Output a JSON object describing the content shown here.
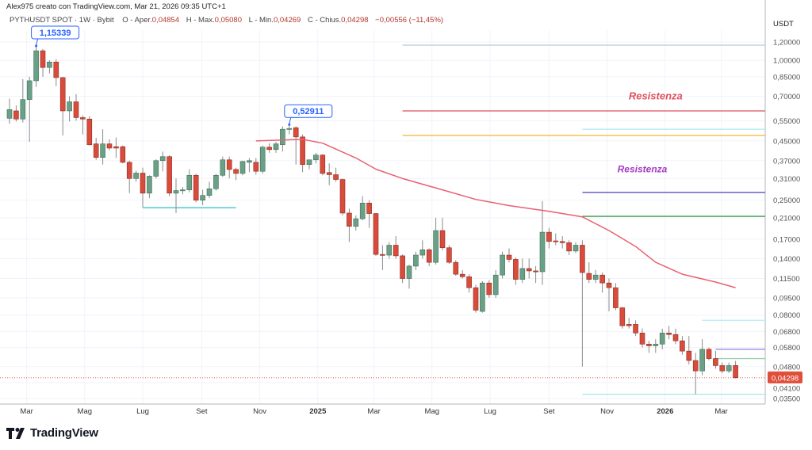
{
  "header": {
    "watermark": "Alex975 creato con TradingView.com, Mar 21, 2026 09:35 UTC+1",
    "symbol": "PYTHUSDT SPOT · 1W · Bybit",
    "ohlc": [
      {
        "label": "O - Aper.",
        "value": "0,04854"
      },
      {
        "label": "H - Max.",
        "value": "0,05080"
      },
      {
        "label": "L - Min.",
        "value": "0,04269"
      },
      {
        "label": "C - Chius.",
        "value": "0,04298"
      },
      {
        "label": "",
        "value": "−0,00556 (−11,45%)"
      }
    ]
  },
  "footer": {
    "logo_text": "TradingView"
  },
  "colors": {
    "up": "#6aa186",
    "down": "#d94c3c",
    "ma": "#e8616f",
    "callout": "#2962ff",
    "last_price": "#e04e3c"
  },
  "chart_data": {
    "type": "candlestick",
    "interval": "1W",
    "y_unit": "USDT",
    "y_scale": "log",
    "ylim": [
      0.033,
      1.3
    ],
    "grid": true,
    "y_ticks": [
      {
        "v": 1.2,
        "label": "1,20000"
      },
      {
        "v": 1.0,
        "label": "1,00000"
      },
      {
        "v": 0.85,
        "label": "0,85000"
      },
      {
        "v": 0.7,
        "label": "0,70000"
      },
      {
        "v": 0.55,
        "label": "0,55000"
      },
      {
        "v": 0.45,
        "label": "0,45000"
      },
      {
        "v": 0.37,
        "label": "0,37000"
      },
      {
        "v": 0.31,
        "label": "0,31000"
      },
      {
        "v": 0.25,
        "label": "0,25000"
      },
      {
        "v": 0.21,
        "label": "0,21000"
      },
      {
        "v": 0.17,
        "label": "0,17000"
      },
      {
        "v": 0.14,
        "label": "0,14000"
      },
      {
        "v": 0.115,
        "label": "0,11500"
      },
      {
        "v": 0.095,
        "label": "0,09500"
      },
      {
        "v": 0.08,
        "label": "0,08000"
      },
      {
        "v": 0.068,
        "label": "0,06800"
      },
      {
        "v": 0.058,
        "label": "0,05800"
      },
      {
        "v": 0.048,
        "label": "0,04800"
      },
      {
        "v": 0.041,
        "label": "0,04100"
      },
      {
        "v": 0.035,
        "label": "0,03500"
      }
    ],
    "x_ticks": [
      {
        "date": "2024-03-01",
        "label": "Mar"
      },
      {
        "date": "2024-05-01",
        "label": "Mag"
      },
      {
        "date": "2024-07-01",
        "label": "Lug"
      },
      {
        "date": "2024-09-01",
        "label": "Set"
      },
      {
        "date": "2024-11-01",
        "label": "Nov"
      },
      {
        "date": "2025-01-01",
        "label": "2025",
        "bold": true
      },
      {
        "date": "2025-03-01",
        "label": "Mar"
      },
      {
        "date": "2025-05-01",
        "label": "Mag"
      },
      {
        "date": "2025-07-01",
        "label": "Lug"
      },
      {
        "date": "2025-09-01",
        "label": "Set"
      },
      {
        "date": "2025-11-01",
        "label": "Nov"
      },
      {
        "date": "2026-01-01",
        "label": "2026",
        "bold": true
      },
      {
        "date": "2026-03-01",
        "label": "Mar"
      }
    ],
    "last_price": {
      "value": 0.04298,
      "label": "0,04298"
    },
    "candles": [
      [
        "2024-02-12",
        0.563,
        0.684,
        0.533,
        0.614
      ],
      [
        "2024-02-19",
        0.606,
        0.64,
        0.545,
        0.559
      ],
      [
        "2024-02-26",
        0.559,
        0.83,
        0.54,
        0.678
      ],
      [
        "2024-03-04",
        0.678,
        0.85,
        0.446,
        0.817
      ],
      [
        "2024-03-11",
        0.817,
        1.15339,
        0.769,
        1.1
      ],
      [
        "2024-03-18",
        1.1,
        1.12,
        0.85,
        0.932
      ],
      [
        "2024-03-25",
        0.932,
        1.0,
        0.88,
        0.984
      ],
      [
        "2024-04-01",
        0.984,
        1.01,
        0.775,
        0.843
      ],
      [
        "2024-04-08",
        0.843,
        0.85,
        0.475,
        0.606
      ],
      [
        "2024-04-15",
        0.606,
        0.7,
        0.545,
        0.663
      ],
      [
        "2024-04-22",
        0.663,
        0.716,
        0.55,
        0.567
      ],
      [
        "2024-04-29",
        0.567,
        0.58,
        0.48,
        0.559
      ],
      [
        "2024-05-06",
        0.559,
        0.575,
        0.43,
        0.433
      ],
      [
        "2024-05-13",
        0.437,
        0.464,
        0.373,
        0.382
      ],
      [
        "2024-05-20",
        0.382,
        0.505,
        0.356,
        0.437
      ],
      [
        "2024-05-27",
        0.437,
        0.457,
        0.41,
        0.419
      ],
      [
        "2024-06-03",
        0.425,
        0.465,
        0.38,
        0.419
      ],
      [
        "2024-06-10",
        0.425,
        0.43,
        0.36,
        0.364
      ],
      [
        "2024-06-17",
        0.364,
        0.37,
        0.268,
        0.31
      ],
      [
        "2024-06-24",
        0.31,
        0.335,
        0.3,
        0.327
      ],
      [
        "2024-07-01",
        0.327,
        0.345,
        0.233,
        0.268
      ],
      [
        "2024-07-08",
        0.268,
        0.32,
        0.255,
        0.317
      ],
      [
        "2024-07-15",
        0.317,
        0.375,
        0.31,
        0.37
      ],
      [
        "2024-07-22",
        0.37,
        0.405,
        0.333,
        0.385
      ],
      [
        "2024-07-29",
        0.385,
        0.39,
        0.26,
        0.268
      ],
      [
        "2024-08-05",
        0.268,
        0.31,
        0.22,
        0.275
      ],
      [
        "2024-08-12",
        0.275,
        0.285,
        0.265,
        0.277
      ],
      [
        "2024-08-19",
        0.277,
        0.34,
        0.27,
        0.32
      ],
      [
        "2024-08-26",
        0.32,
        0.325,
        0.245,
        0.25
      ],
      [
        "2024-09-02",
        0.25,
        0.277,
        0.238,
        0.262
      ],
      [
        "2024-09-09",
        0.262,
        0.3,
        0.255,
        0.28
      ],
      [
        "2024-09-16",
        0.28,
        0.325,
        0.275,
        0.32
      ],
      [
        "2024-09-23",
        0.32,
        0.385,
        0.315,
        0.373
      ],
      [
        "2024-09-30",
        0.373,
        0.385,
        0.31,
        0.339
      ],
      [
        "2024-10-07",
        0.339,
        0.345,
        0.305,
        0.326
      ],
      [
        "2024-10-14",
        0.326,
        0.37,
        0.32,
        0.367
      ],
      [
        "2024-10-21",
        0.364,
        0.38,
        0.33,
        0.37
      ],
      [
        "2024-10-28",
        0.364,
        0.38,
        0.322,
        0.333
      ],
      [
        "2024-11-04",
        0.333,
        0.43,
        0.325,
        0.423
      ],
      [
        "2024-11-11",
        0.423,
        0.44,
        0.4,
        0.413
      ],
      [
        "2024-11-18",
        0.413,
        0.445,
        0.4,
        0.437
      ],
      [
        "2024-11-25",
        0.433,
        0.52,
        0.405,
        0.505
      ],
      [
        "2024-12-02",
        0.505,
        0.52911,
        0.48,
        0.509
      ],
      [
        "2024-12-09",
        0.513,
        0.52,
        0.356,
        0.468
      ],
      [
        "2024-12-16",
        0.468,
        0.48,
        0.33,
        0.356
      ],
      [
        "2024-12-23",
        0.356,
        0.37,
        0.34,
        0.373
      ],
      [
        "2024-12-30",
        0.373,
        0.4,
        0.36,
        0.391
      ],
      [
        "2025-01-06",
        0.391,
        0.395,
        0.32,
        0.326
      ],
      [
        "2025-01-13",
        0.329,
        0.36,
        0.29,
        0.322
      ],
      [
        "2025-01-20",
        0.322,
        0.345,
        0.3,
        0.307
      ],
      [
        "2025-01-27",
        0.307,
        0.31,
        0.215,
        0.22
      ],
      [
        "2025-02-03",
        0.22,
        0.23,
        0.165,
        0.193
      ],
      [
        "2025-02-10",
        0.193,
        0.215,
        0.185,
        0.208
      ],
      [
        "2025-02-17",
        0.208,
        0.26,
        0.205,
        0.243
      ],
      [
        "2025-02-24",
        0.243,
        0.25,
        0.19,
        0.219
      ],
      [
        "2025-03-03",
        0.219,
        0.22,
        0.144,
        0.146
      ],
      [
        "2025-03-10",
        0.146,
        0.16,
        0.125,
        0.145
      ],
      [
        "2025-03-17",
        0.145,
        0.165,
        0.14,
        0.16
      ],
      [
        "2025-03-24",
        0.16,
        0.175,
        0.14,
        0.144
      ],
      [
        "2025-03-31",
        0.144,
        0.146,
        0.11,
        0.115
      ],
      [
        "2025-04-07",
        0.115,
        0.132,
        0.104,
        0.13
      ],
      [
        "2025-04-14",
        0.13,
        0.15,
        0.125,
        0.145
      ],
      [
        "2025-04-21",
        0.145,
        0.168,
        0.14,
        0.153
      ],
      [
        "2025-04-28",
        0.153,
        0.155,
        0.13,
        0.135
      ],
      [
        "2025-05-05",
        0.135,
        0.21,
        0.132,
        0.185
      ],
      [
        "2025-05-12",
        0.185,
        0.21,
        0.152,
        0.156
      ],
      [
        "2025-05-19",
        0.156,
        0.16,
        0.133,
        0.135
      ],
      [
        "2025-05-26",
        0.135,
        0.138,
        0.118,
        0.12
      ],
      [
        "2025-06-02",
        0.12,
        0.125,
        0.115,
        0.117
      ],
      [
        "2025-06-09",
        0.117,
        0.12,
        0.1,
        0.105
      ],
      [
        "2025-06-16",
        0.105,
        0.108,
        0.082,
        0.084
      ],
      [
        "2025-06-23",
        0.083,
        0.112,
        0.082,
        0.11
      ],
      [
        "2025-06-30",
        0.11,
        0.113,
        0.095,
        0.098
      ],
      [
        "2025-07-07",
        0.098,
        0.125,
        0.095,
        0.119
      ],
      [
        "2025-07-14",
        0.119,
        0.15,
        0.115,
        0.145
      ],
      [
        "2025-07-21",
        0.145,
        0.155,
        0.135,
        0.139
      ],
      [
        "2025-07-28",
        0.139,
        0.142,
        0.108,
        0.114
      ],
      [
        "2025-08-04",
        0.114,
        0.14,
        0.11,
        0.127
      ],
      [
        "2025-08-11",
        0.127,
        0.14,
        0.115,
        0.124
      ],
      [
        "2025-08-18",
        0.124,
        0.13,
        0.11,
        0.123
      ],
      [
        "2025-08-25",
        0.123,
        0.248,
        0.108,
        0.182
      ],
      [
        "2025-09-01",
        0.182,
        0.19,
        0.155,
        0.166
      ],
      [
        "2025-09-08",
        0.167,
        0.18,
        0.16,
        0.166
      ],
      [
        "2025-09-15",
        0.166,
        0.175,
        0.155,
        0.164
      ],
      [
        "2025-09-22",
        0.164,
        0.168,
        0.145,
        0.151
      ],
      [
        "2025-09-29",
        0.151,
        0.165,
        0.148,
        0.16
      ],
      [
        "2025-10-06",
        0.16,
        0.168,
        0.048,
        0.122
      ],
      [
        "2025-10-13",
        0.121,
        0.135,
        0.11,
        0.114
      ],
      [
        "2025-10-20",
        0.114,
        0.125,
        0.11,
        0.119
      ],
      [
        "2025-10-27",
        0.119,
        0.122,
        0.1,
        0.11
      ],
      [
        "2025-11-03",
        0.11,
        0.115,
        0.083,
        0.105
      ],
      [
        "2025-11-10",
        0.105,
        0.11,
        0.084,
        0.086
      ],
      [
        "2025-11-17",
        0.086,
        0.087,
        0.07,
        0.072
      ],
      [
        "2025-11-24",
        0.073,
        0.078,
        0.07,
        0.072
      ],
      [
        "2025-12-01",
        0.073,
        0.076,
        0.065,
        0.067
      ],
      [
        "2025-12-08",
        0.067,
        0.07,
        0.058,
        0.06
      ],
      [
        "2025-12-15",
        0.06,
        0.062,
        0.055,
        0.059
      ],
      [
        "2025-12-22",
        0.059,
        0.063,
        0.055,
        0.06
      ],
      [
        "2025-12-29",
        0.06,
        0.07,
        0.057,
        0.067
      ],
      [
        "2026-01-05",
        0.067,
        0.072,
        0.063,
        0.066
      ],
      [
        "2026-01-12",
        0.066,
        0.07,
        0.06,
        0.062
      ],
      [
        "2026-01-19",
        0.062,
        0.065,
        0.054,
        0.056
      ],
      [
        "2026-01-26",
        0.056,
        0.065,
        0.049,
        0.051
      ],
      [
        "2026-02-02",
        0.051,
        0.055,
        0.0365,
        0.046
      ],
      [
        "2026-02-09",
        0.046,
        0.063,
        0.044,
        0.057
      ],
      [
        "2026-02-16",
        0.057,
        0.058,
        0.051,
        0.052
      ],
      [
        "2026-02-23",
        0.052,
        0.056,
        0.047,
        0.0485
      ],
      [
        "2026-03-02",
        0.0485,
        0.05,
        0.045,
        0.046
      ],
      [
        "2026-03-09",
        0.046,
        0.05,
        0.045,
        0.0485
      ],
      [
        "2026-03-16",
        0.04854,
        0.0508,
        0.04269,
        0.04298
      ]
    ],
    "moving_average": [
      [
        "2024-10-28",
        0.45
      ],
      [
        "2024-12-16",
        0.457
      ],
      [
        "2025-01-06",
        0.44
      ],
      [
        "2025-02-10",
        0.38
      ],
      [
        "2025-03-03",
        0.34
      ],
      [
        "2025-03-31",
        0.31
      ],
      [
        "2025-05-12",
        0.277
      ],
      [
        "2025-06-16",
        0.252
      ],
      [
        "2025-07-21",
        0.237
      ],
      [
        "2025-09-01",
        0.224
      ],
      [
        "2025-10-06",
        0.212
      ],
      [
        "2025-11-03",
        0.185
      ],
      [
        "2025-12-01",
        0.158
      ],
      [
        "2025-12-22",
        0.135
      ],
      [
        "2026-01-19",
        0.12
      ],
      [
        "2026-02-23",
        0.111
      ],
      [
        "2026-03-16",
        0.105
      ]
    ],
    "horizontal_lines": [
      {
        "price": 1.163,
        "from": "2025-03-31",
        "color": "#b8c9d6"
      },
      {
        "price": 0.606,
        "from": "2025-03-31",
        "color": "#e0505f"
      },
      {
        "price": 0.505,
        "from": "2025-10-06",
        "color": "#b2ebf2"
      },
      {
        "price": 0.475,
        "from": "2025-03-31",
        "color": "#f5b52e"
      },
      {
        "price": 0.27,
        "from": "2025-10-06",
        "color": "#4a3fc4"
      },
      {
        "price": 0.213,
        "from": "2025-10-06",
        "color": "#3f9a4a"
      },
      {
        "price": 0.076,
        "from": "2026-02-09",
        "color": "#b2ebf2"
      },
      {
        "price": 0.057,
        "from": "2026-02-23",
        "color": "#8d7fe0"
      },
      {
        "price": 0.052,
        "from": "2026-02-23",
        "color": "#9fd3b0"
      },
      {
        "price": 0.0365,
        "from": "2025-10-06",
        "color": "#a6e3ef"
      }
    ],
    "support_line": {
      "price": 0.232,
      "from": "2024-07-01",
      "to": "2024-10-07",
      "color": "#3cc6d0"
    },
    "callouts": [
      {
        "date": "2024-03-11",
        "price": 1.15339,
        "label": "1,15339"
      },
      {
        "date": "2024-12-02",
        "price": 0.52911,
        "label": "0,52911"
      }
    ],
    "text_annotations": [
      {
        "text": "Resistenza",
        "date": "2025-12-22",
        "price": 0.7,
        "color": "#e0505f"
      },
      {
        "text": "Resistenza",
        "date": "2025-12-08",
        "price": 0.34,
        "color": "#a23cc4"
      }
    ]
  }
}
